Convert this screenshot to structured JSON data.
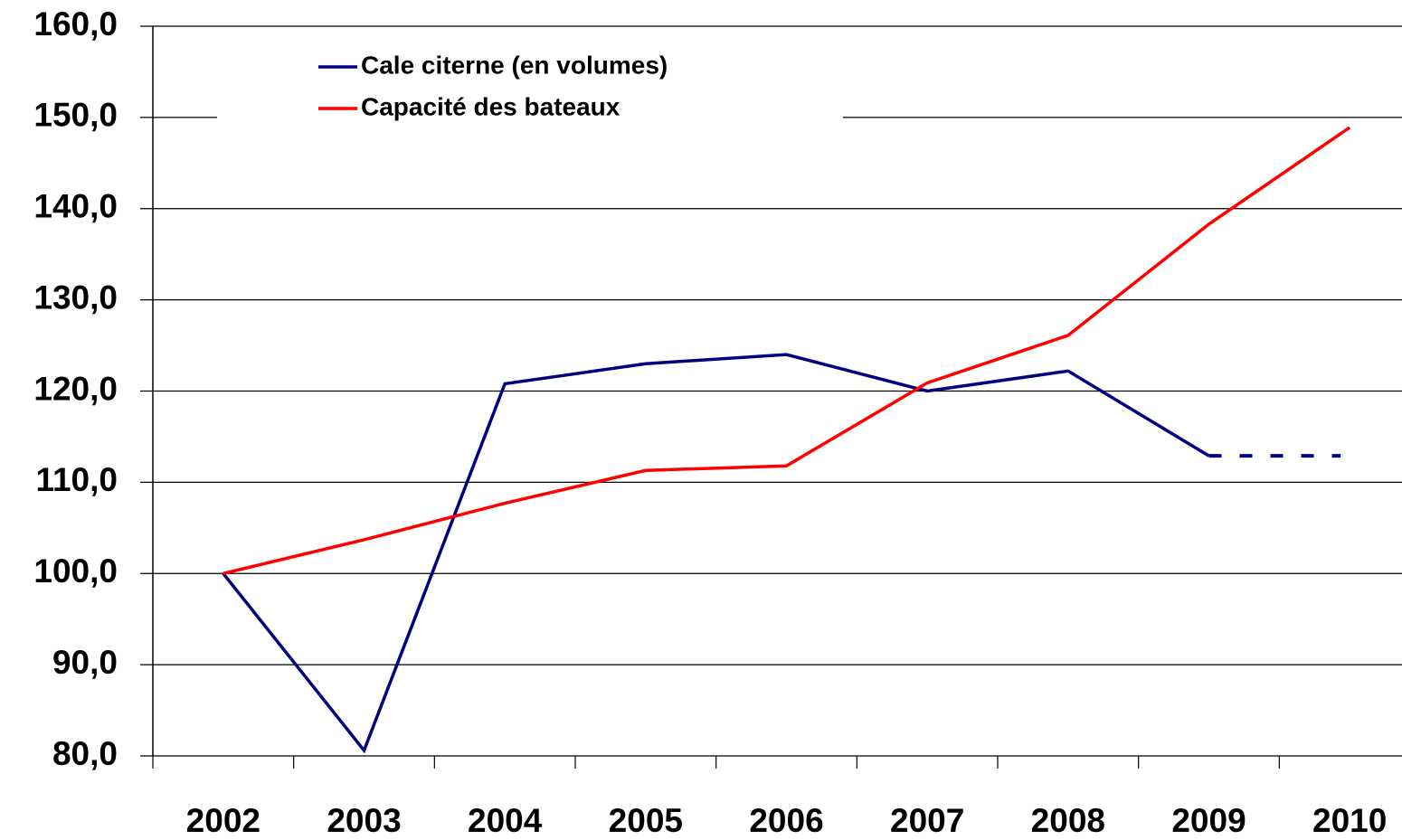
{
  "chart_data": {
    "type": "line",
    "categories": [
      "2002",
      "2003",
      "2004",
      "2005",
      "2006",
      "2007",
      "2008",
      "2009",
      "2010"
    ],
    "series": [
      {
        "name": "Cale citerne (en volumes)",
        "color": "#000080",
        "values": [
          100,
          80.6,
          120.8,
          123.0,
          124.0,
          120.0,
          122.2,
          112.9,
          112.9
        ],
        "dash_last": true
      },
      {
        "name": "Capacité des bateaux",
        "color": "#ff0000",
        "values": [
          100,
          103.7,
          107.7,
          111.3,
          111.8,
          120.9,
          126.1,
          138.3,
          148.9
        ]
      }
    ],
    "ylim": [
      80,
      160
    ],
    "yticks": [
      {
        "value": 80,
        "label": "80,0"
      },
      {
        "value": 90,
        "label": "90,0"
      },
      {
        "value": 100,
        "label": "100,0"
      },
      {
        "value": 110,
        "label": "110,0"
      },
      {
        "value": 120,
        "label": "120,0"
      },
      {
        "value": 130,
        "label": "130,0"
      },
      {
        "value": 140,
        "label": "140,0"
      },
      {
        "value": 150,
        "label": "150,0"
      },
      {
        "value": 160,
        "label": "160,0"
      }
    ],
    "grid": true,
    "legend": "upper left"
  }
}
